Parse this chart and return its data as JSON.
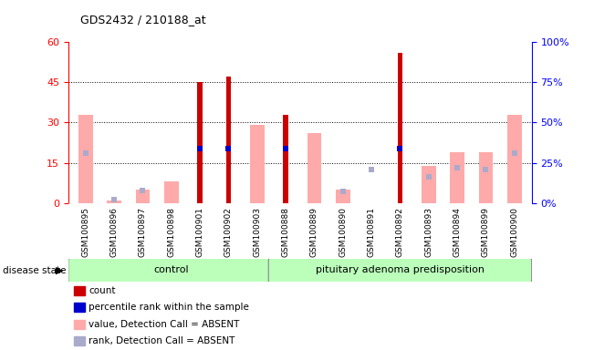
{
  "title": "GDS2432 / 210188_at",
  "samples": [
    "GSM100895",
    "GSM100896",
    "GSM100897",
    "GSM100898",
    "GSM100901",
    "GSM100902",
    "GSM100903",
    "GSM100888",
    "GSM100889",
    "GSM100890",
    "GSM100891",
    "GSM100892",
    "GSM100893",
    "GSM100894",
    "GSM100899",
    "GSM100900"
  ],
  "groups": [
    "control",
    "control",
    "control",
    "control",
    "control",
    "control",
    "control",
    "pituitary adenoma predisposition",
    "pituitary adenoma predisposition",
    "pituitary adenoma predisposition",
    "pituitary adenoma predisposition",
    "pituitary adenoma predisposition",
    "pituitary adenoma predisposition",
    "pituitary adenoma predisposition",
    "pituitary adenoma predisposition",
    "pituitary adenoma predisposition"
  ],
  "count": [
    0,
    0,
    0,
    0,
    45,
    47,
    0,
    33,
    0,
    0,
    0,
    56,
    0,
    0,
    0,
    0
  ],
  "percentile_rank": [
    null,
    null,
    null,
    null,
    34,
    34,
    null,
    34,
    null,
    null,
    null,
    34,
    null,
    null,
    null,
    null
  ],
  "value_absent": [
    33,
    1,
    5,
    8,
    null,
    null,
    29,
    null,
    26,
    5,
    null,
    null,
    14,
    19,
    19,
    33
  ],
  "rank_absent": [
    31,
    2,
    8,
    null,
    null,
    null,
    null,
    null,
    null,
    7,
    21,
    null,
    16,
    22,
    21,
    31
  ],
  "ylim_left": [
    0,
    60
  ],
  "ylim_right": [
    0,
    100
  ],
  "yticks_left": [
    0,
    15,
    30,
    45,
    60
  ],
  "yticks_right": [
    0,
    25,
    50,
    75,
    100
  ],
  "bar_color_count": "#cc0000",
  "bar_color_percentile": "#0000cc",
  "bar_color_value_absent": "#ffaaaa",
  "bar_color_rank_absent": "#aaaacc",
  "group_color": "#bbffbb",
  "control_label": "control",
  "disease_label": "pituitary adenoma predisposition",
  "disease_state_label": "disease state",
  "legend_items": [
    "count",
    "percentile rank within the sample",
    "value, Detection Call = ABSENT",
    "rank, Detection Call = ABSENT"
  ],
  "legend_colors": [
    "#cc0000",
    "#0000cc",
    "#ffaaaa",
    "#aaaacc"
  ],
  "bar_width": 0.5,
  "count_bar_width": 0.18
}
